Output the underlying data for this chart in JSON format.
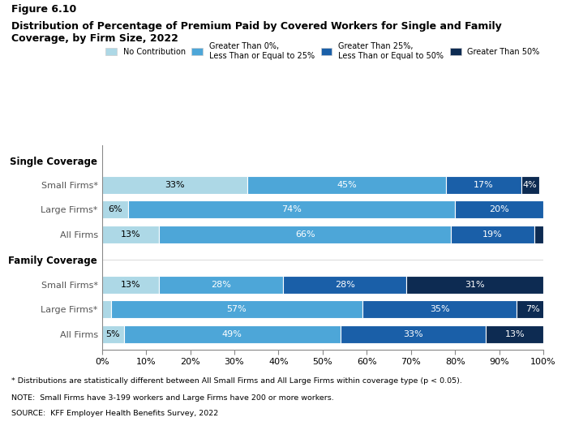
{
  "title_line1": "Figure 6.10",
  "title_line2": "Distribution of Percentage of Premium Paid by Covered Workers for Single and Family\nCoverage, by Firm Size, 2022",
  "legend_labels": [
    "No Contribution",
    "Greater Than 0%,\nLess Than or Equal to 25%",
    "Greater Than 25%,\nLess Than or Equal to 50%",
    "Greater Than 50%"
  ],
  "colors": [
    "#add8e6",
    "#4da6d8",
    "#1a5fa8",
    "#0d2b52"
  ],
  "section_label_single": "Single Coverage",
  "section_label_family": "Family Coverage",
  "row_labels": [
    "Small Firms*",
    "Large Firms*",
    "All Firms",
    "Small Firms*",
    "Large Firms*",
    "All Firms"
  ],
  "data": [
    [
      33,
      45,
      17,
      4
    ],
    [
      6,
      74,
      20,
      0
    ],
    [
      13,
      66,
      19,
      2
    ],
    [
      13,
      28,
      28,
      31
    ],
    [
      2,
      57,
      35,
      7
    ],
    [
      5,
      49,
      33,
      13
    ]
  ],
  "footnote1": "* Distributions are statistically different between All Small Firms and All Large Firms within coverage type (p < 0.05).",
  "footnote2": "NOTE:  Small Firms have 3-199 workers and Large Firms have 200 or more workers.",
  "footnote3": "SOURCE:  KFF Employer Health Benefits Survey, 2022",
  "xtick_labels": [
    "0%",
    "10%",
    "20%",
    "30%",
    "40%",
    "50%",
    "60%",
    "70%",
    "80%",
    "90%",
    "100%"
  ],
  "xtick_values": [
    0,
    10,
    20,
    30,
    40,
    50,
    60,
    70,
    80,
    90,
    100
  ]
}
